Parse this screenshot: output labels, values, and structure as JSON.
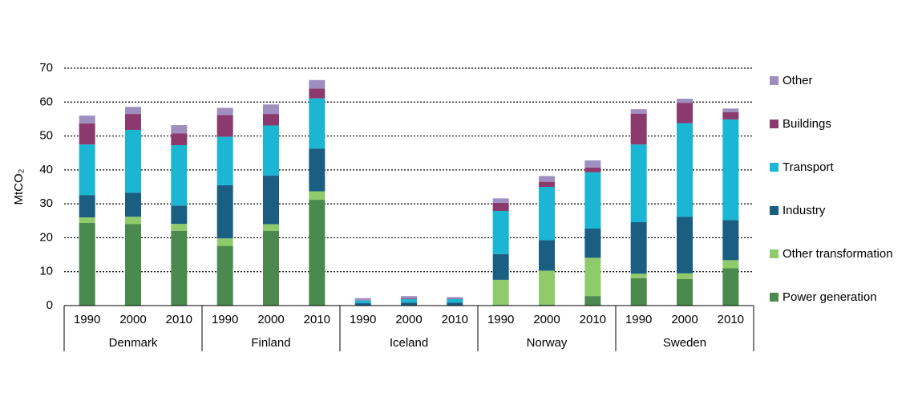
{
  "chart_data": {
    "type": "stacked-bar",
    "y_label": "MtCO₂",
    "groups": [
      "Denmark",
      "Finland",
      "Iceland",
      "Norway",
      "Sweden"
    ],
    "categories": [
      "1990",
      "2000",
      "2010",
      "1990",
      "2000",
      "2010",
      "1990",
      "2000",
      "2010",
      "1990",
      "2000",
      "2010",
      "1990",
      "2000",
      "2010"
    ],
    "series": [
      {
        "name": "Power generation",
        "color": "#4a8a4e",
        "values": [
          24.4,
          24,
          22,
          17.6,
          22,
          31.2,
          0.1,
          0.1,
          0.1,
          0.2,
          0.3,
          2.8,
          8.1,
          7.8,
          11
        ]
      },
      {
        "name": "Other transformation",
        "color": "#8fcb6b",
        "values": [
          1.6,
          2.2,
          2.1,
          2.2,
          2,
          2.5,
          0,
          0,
          0,
          7.4,
          10,
          11.3,
          1.3,
          1.7,
          2.4
        ]
      },
      {
        "name": "Industry",
        "color": "#1a5e82",
        "values": [
          6.6,
          7.1,
          5.4,
          15.7,
          14.3,
          12.6,
          0.6,
          0.8,
          0.8,
          7.6,
          9,
          8.6,
          15.2,
          16.7,
          11.8
        ]
      },
      {
        "name": "Transport",
        "color": "#1ab6d4",
        "values": [
          14.9,
          18.5,
          17.8,
          14.3,
          14.8,
          14.8,
          0.8,
          1.0,
          1.0,
          12.7,
          15.7,
          16.6,
          22.9,
          27.6,
          29.7
        ]
      },
      {
        "name": "Buildings",
        "color": "#8b3a6e",
        "values": [
          6.2,
          4.7,
          3.5,
          6.4,
          3.4,
          2.9,
          0.1,
          0.2,
          0.1,
          2.4,
          1.5,
          1.4,
          9.1,
          6,
          2.1
        ]
      },
      {
        "name": "Other",
        "color": "#9e8fbf",
        "values": [
          2.3,
          2.1,
          2.4,
          2.1,
          2.8,
          2.5,
          0.6,
          0.7,
          0.5,
          1.3,
          1.7,
          2.1,
          1.3,
          1.2,
          1.1
        ]
      }
    ],
    "ylim": [
      0,
      70
    ],
    "yticks": [
      0,
      10,
      20,
      30,
      40,
      50,
      60,
      70
    ],
    "grid": true,
    "legend": "right"
  }
}
